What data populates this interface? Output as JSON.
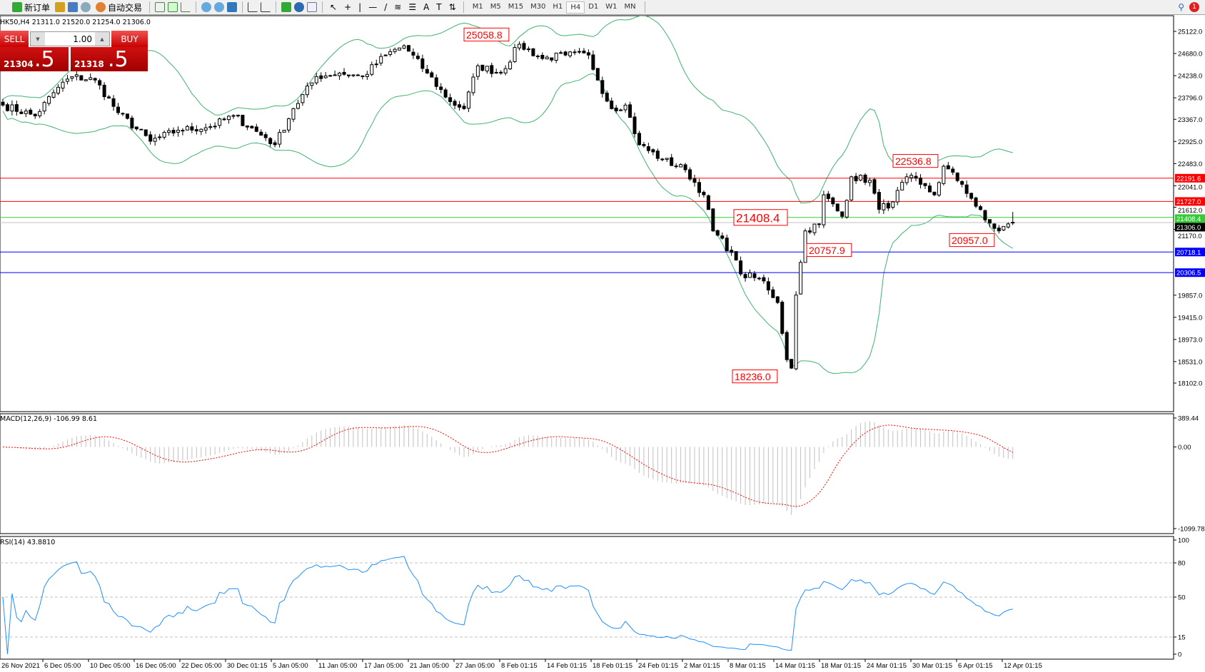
{
  "toolbar": {
    "new_order": "新订单",
    "auto_trading": "自动交易",
    "timeframes": [
      "M1",
      "M5",
      "M15",
      "M30",
      "H1",
      "H4",
      "D1",
      "W1",
      "MN"
    ],
    "active_timeframe": "H4",
    "notification_count": "1"
  },
  "chart": {
    "header": "HK50,H4  21311.0 21520.0 21254.0 21306.0",
    "price_ticks": [
      "25122.0",
      "24680.0",
      "24238.0",
      "23796.0",
      "23367.0",
      "22925.0",
      "22483.0",
      "22041.0",
      "21612.0",
      "21170.0",
      "19857.0",
      "19415.0",
      "18973.0",
      "18531.0",
      "18102.0"
    ],
    "levels": [
      {
        "value": 22191.6,
        "label": "22191.6",
        "color": "#ff0000"
      },
      {
        "value": 21727.0,
        "label": "21727.0",
        "color": "#ff0000"
      },
      {
        "value": 21408.4,
        "label": "21408.4",
        "color": "#32cd32"
      },
      {
        "value": 21306.0,
        "label": "21306.0",
        "color": "#000000"
      },
      {
        "value": 20718.1,
        "label": "20718.1",
        "color": "#0000ff"
      },
      {
        "value": 20306.5,
        "label": "20306.5",
        "color": "#0000ff"
      }
    ],
    "annotations": [
      {
        "value": 25058.8,
        "label": "25058.8"
      },
      {
        "value": 22536.8,
        "label": "22536.8"
      },
      {
        "value": 21408.4,
        "label": "21408.4"
      },
      {
        "value": 20757.9,
        "label": "20757.9"
      },
      {
        "value": 20957.0,
        "label": "20957.0"
      },
      {
        "value": 18236.0,
        "label": "18236.0"
      }
    ],
    "time_labels": [
      "26 Nov 2021",
      "6 Dec 05:00",
      "10 Dec 05:00",
      "16 Dec 05:00",
      "22 Dec 05:00",
      "30 Dec 01:15",
      "5 Jan 05:00",
      "11 Jan 05:00",
      "17 Jan 05:00",
      "21 Jan 05:00",
      "27 Jan 05:00",
      "8 Feb 01:15",
      "14 Feb 01:15",
      "18 Feb 01:15",
      "24 Feb 01:15",
      "2 Mar 01:15",
      "8 Mar 01:15",
      "14 Mar 01:15",
      "18 Mar 01:15",
      "24 Mar 01:15",
      "30 Mar 01:15",
      "6 Apr 01:15",
      "12 Apr 01:15"
    ]
  },
  "trade_panel": {
    "sell_label": "SELL",
    "buy_label": "BUY",
    "lot": "1.00",
    "sell_price": "21304",
    "sell_pips": ".5",
    "buy_price": "21318",
    "buy_pips": ".5"
  },
  "macd": {
    "label": "MACD(12,26,9) -106.99 8.61",
    "ticks": [
      "389.44",
      "0.00",
      "-1099.78"
    ]
  },
  "rsi": {
    "label": "RSI(14) 43.8810",
    "ticks": [
      "100",
      "80",
      "50",
      "15",
      "0"
    ]
  },
  "colors": {
    "bands": "#3cb371",
    "macd_hist": "#c0c0c0",
    "macd_signal": "#ff0000",
    "rsi": "#1e90ff",
    "panel": "#c80000"
  },
  "chart_data": {
    "type": "candlestick",
    "symbol": "HK50",
    "timeframe": "H4",
    "indicators": [
      "Bollinger Bands",
      "MACD(12,26,9)",
      "RSI(14)"
    ],
    "ylim": [
      18102.0,
      25122.0
    ],
    "close_path": [
      [
        0,
        23650
      ],
      [
        7,
        23435
      ],
      [
        12,
        24007
      ],
      [
        15,
        24220
      ],
      [
        20,
        24150
      ],
      [
        25,
        23500
      ],
      [
        32,
        22930
      ],
      [
        38,
        23150
      ],
      [
        45,
        23220
      ],
      [
        50,
        23435
      ],
      [
        57,
        23000
      ],
      [
        59,
        22860
      ],
      [
        63,
        23580
      ],
      [
        68,
        24220
      ],
      [
        73,
        24290
      ],
      [
        78,
        24220
      ],
      [
        83,
        24650
      ],
      [
        87,
        24835
      ],
      [
        92,
        24290
      ],
      [
        97,
        23720
      ],
      [
        100,
        23580
      ],
      [
        103,
        24435
      ],
      [
        108,
        24290
      ],
      [
        112,
        24865
      ],
      [
        117,
        24580
      ],
      [
        122,
        24650
      ],
      [
        127,
        24650
      ],
      [
        129,
        24150
      ],
      [
        132,
        23580
      ],
      [
        135,
        23650
      ],
      [
        138,
        22860
      ],
      [
        143,
        22570
      ],
      [
        148,
        22360
      ],
      [
        152,
        21860
      ],
      [
        154,
        21140
      ],
      [
        158,
        20710
      ],
      [
        160,
        20280
      ],
      [
        165,
        20140
      ],
      [
        168,
        19710
      ],
      [
        170,
        18570
      ],
      [
        171,
        18400
      ],
      [
        172,
        19860
      ],
      [
        174,
        21140
      ],
      [
        177,
        21280
      ],
      [
        178,
        21860
      ],
      [
        182,
        21430
      ],
      [
        184,
        22220
      ],
      [
        188,
        22150
      ],
      [
        190,
        21570
      ],
      [
        193,
        21720
      ],
      [
        196,
        22220
      ],
      [
        199,
        22070
      ],
      [
        202,
        21860
      ],
      [
        204,
        22430
      ],
      [
        208,
        22070
      ],
      [
        210,
        21790
      ],
      [
        213,
        21360
      ],
      [
        216,
        21140
      ],
      [
        218,
        21280
      ],
      [
        219,
        21306
      ]
    ],
    "last_bar": {
      "open": 21311.0,
      "high": 21520.0,
      "low": 21254.0,
      "close": 21306.0
    }
  }
}
